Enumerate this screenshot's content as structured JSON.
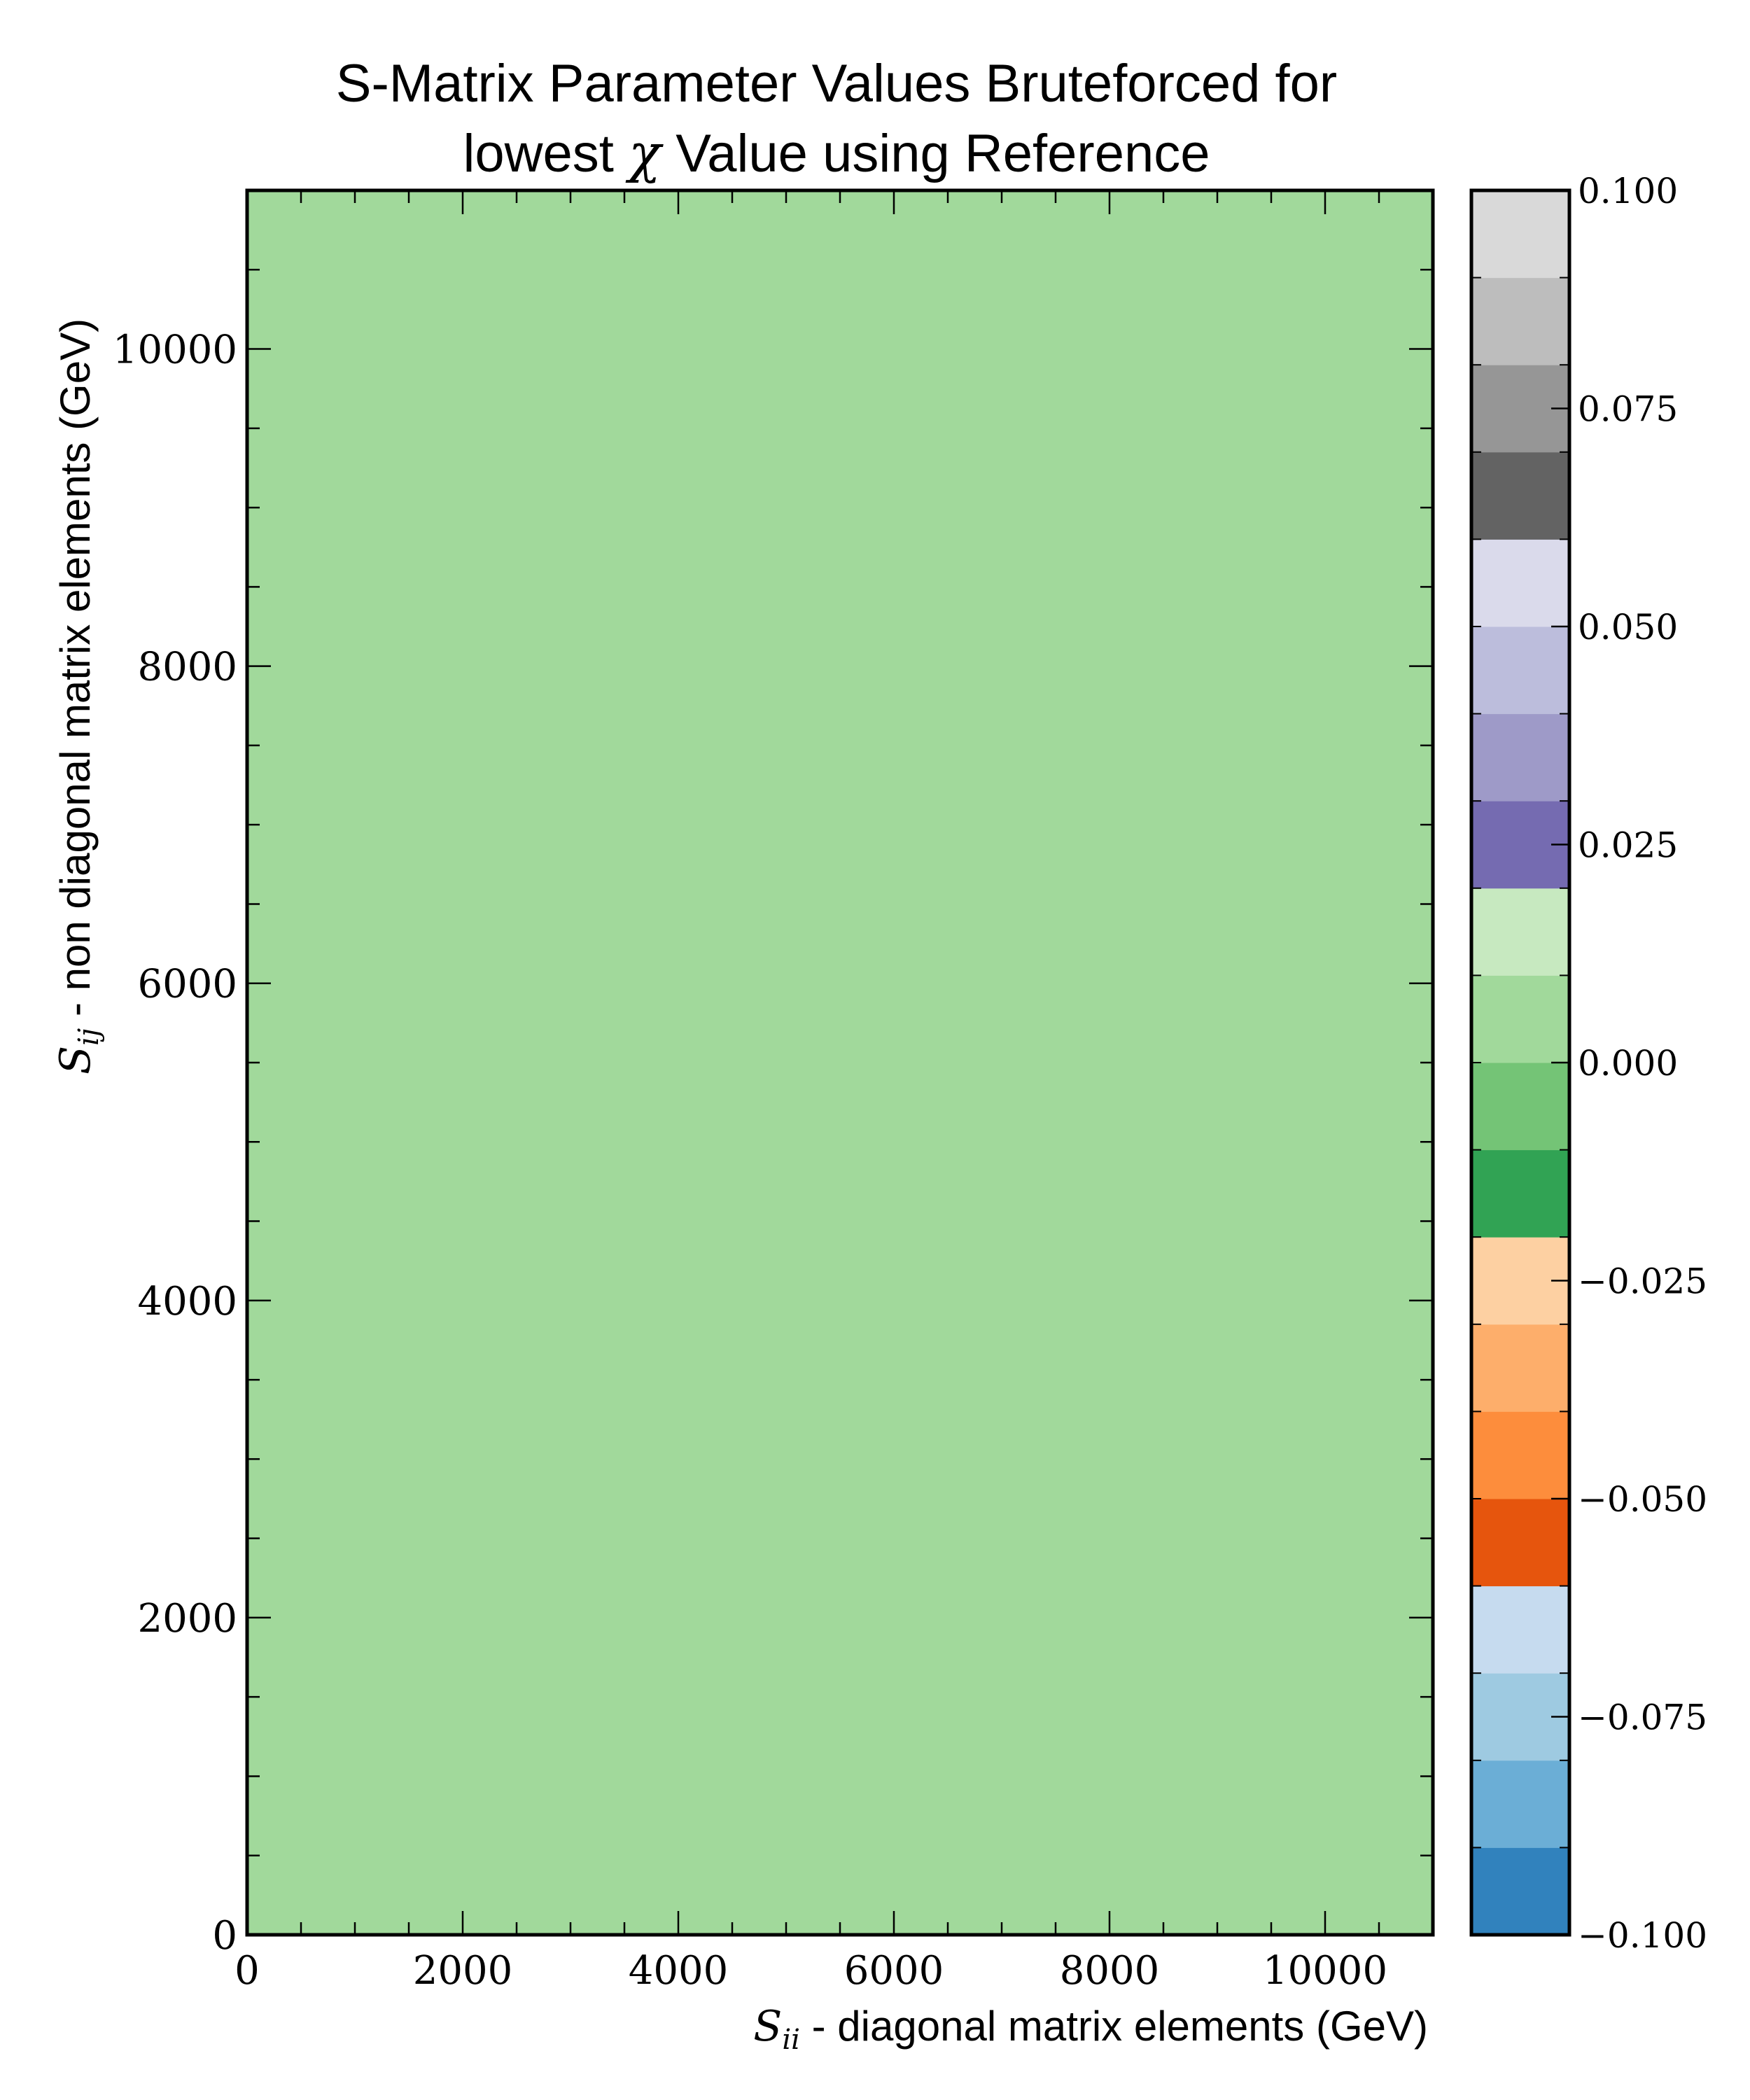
{
  "chart_data": {
    "type": "heatmap",
    "title_line1": "S-Matrix Parameter Values Bruteforced for",
    "title_line2_pre": "lowest ",
    "title_line2_sym": "χ",
    "title_line2_post": " Value using Reference",
    "xlabel_sym": "S",
    "xlabel_sub": "ii",
    "xlabel_text": " - diagonal matrix elements (GeV)",
    "ylabel_sym": "S",
    "ylabel_sub": "ij",
    "ylabel_text": " - non diagonal matrix elements (GeV)",
    "xlim": [
      0,
      11000
    ],
    "ylim": [
      0,
      11000
    ],
    "xticks": [
      0,
      2000,
      4000,
      6000,
      8000,
      10000
    ],
    "yticks": [
      0,
      2000,
      4000,
      6000,
      8000,
      10000
    ],
    "xtick_labels": [
      "0",
      "2000",
      "4000",
      "6000",
      "8000",
      "10000"
    ],
    "ytick_labels": [
      "0",
      "2000",
      "4000",
      "6000",
      "8000",
      "10000"
    ],
    "field_value": 0.0,
    "field_color": "#a1d99b",
    "colorbar": {
      "range": [
        -0.1,
        0.1
      ],
      "tick_values": [
        -0.1,
        -0.075,
        -0.05,
        -0.025,
        0.0,
        0.025,
        0.05,
        0.075,
        0.1
      ],
      "tick_labels": [
        "−0.100",
        "−0.075",
        "−0.050",
        "−0.025",
        "0.000",
        "0.025",
        "0.050",
        "0.075",
        "0.100"
      ],
      "colors": [
        "#3182bd",
        "#6baed6",
        "#9ecae1",
        "#c6dbef",
        "#e6550d",
        "#fd8d3c",
        "#fdae6b",
        "#fdd0a2",
        "#31a354",
        "#74c476",
        "#a1d99b",
        "#c7e9c0",
        "#756bb1",
        "#9e9ac8",
        "#bcbddc",
        "#dadaeb",
        "#636363",
        "#969696",
        "#bdbdbd",
        "#d9d9d9"
      ]
    }
  }
}
